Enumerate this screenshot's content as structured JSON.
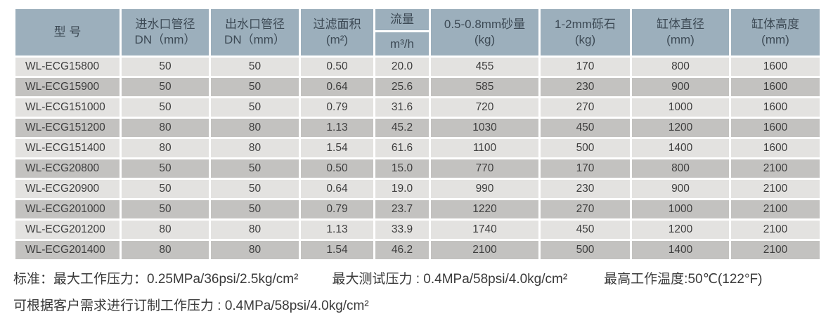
{
  "table": {
    "header": {
      "model": "型  号",
      "inlet_title": "进水口管径",
      "inlet_unit": "DN（mm）",
      "outlet_title": "出水口管径",
      "outlet_unit": "DN（mm）",
      "filter_area_title": "过滤面积",
      "filter_area_unit": "(m²)",
      "flow_title": "流量",
      "flow_unit": "m³/h",
      "sand_title": "0.5-0.8mm砂量",
      "sand_unit": "(kg)",
      "gravel_title": "1-2mm砾石",
      "gravel_unit": "(kg)",
      "diameter_title": "缸体直径",
      "diameter_unit": "(mm)",
      "height_title": "缸体高度",
      "height_unit": "(mm)"
    },
    "row_keys": [
      "model",
      "inlet_dn",
      "outlet_dn",
      "filter_area",
      "flow",
      "sand",
      "gravel",
      "diameter",
      "height"
    ],
    "rows": [
      {
        "model": "WL-ECG15800",
        "inlet_dn": "50",
        "outlet_dn": "50",
        "filter_area": "0.50",
        "flow": "20.0",
        "sand": "455",
        "gravel": "170",
        "diameter": "800",
        "height": "1600"
      },
      {
        "model": "WL-ECG15900",
        "inlet_dn": "50",
        "outlet_dn": "50",
        "filter_area": "0.64",
        "flow": "25.6",
        "sand": "585",
        "gravel": "230",
        "diameter": "900",
        "height": "1600"
      },
      {
        "model": "WL-ECG151000",
        "inlet_dn": "50",
        "outlet_dn": "50",
        "filter_area": "0.79",
        "flow": "31.6",
        "sand": "720",
        "gravel": "270",
        "diameter": "1000",
        "height": "1600"
      },
      {
        "model": "WL-ECG151200",
        "inlet_dn": "80",
        "outlet_dn": "80",
        "filter_area": "1.13",
        "flow": "45.2",
        "sand": "1030",
        "gravel": "450",
        "diameter": "1200",
        "height": "1600"
      },
      {
        "model": "WL-ECG151400",
        "inlet_dn": "80",
        "outlet_dn": "80",
        "filter_area": "1.54",
        "flow": "61.6",
        "sand": "1100",
        "gravel": "500",
        "diameter": "1400",
        "height": "1600"
      },
      {
        "model": "WL-ECG20800",
        "inlet_dn": "50",
        "outlet_dn": "50",
        "filter_area": "0.50",
        "flow": "15.0",
        "sand": "770",
        "gravel": "170",
        "diameter": "800",
        "height": "2100"
      },
      {
        "model": "WL-ECG20900",
        "inlet_dn": "50",
        "outlet_dn": "50",
        "filter_area": "0.64",
        "flow": "19.0",
        "sand": "990",
        "gravel": "230",
        "diameter": "900",
        "height": "2100"
      },
      {
        "model": "WL-ECG201000",
        "inlet_dn": "50",
        "outlet_dn": "50",
        "filter_area": "0.79",
        "flow": "23.7",
        "sand": "1220",
        "gravel": "270",
        "diameter": "1000",
        "height": "2100"
      },
      {
        "model": "WL-ECG201200",
        "inlet_dn": "80",
        "outlet_dn": "80",
        "filter_area": "1.13",
        "flow": "33.9",
        "sand": "1740",
        "gravel": "450",
        "diameter": "1200",
        "height": "2100"
      },
      {
        "model": "WL-ECG201400",
        "inlet_dn": "80",
        "outlet_dn": "80",
        "filter_area": "1.54",
        "flow": "46.2",
        "sand": "2100",
        "gravel": "500",
        "diameter": "1400",
        "height": "2100"
      }
    ]
  },
  "notes": {
    "line1_part1": "标准：最大工作压力：0.25MPa/36psi/2.5kg/cm²",
    "line1_part2": "最大测试压力 : 0.4MPa/58psi/4.0kg/cm²",
    "line1_part3": "最高工作温度:50℃(122°F)",
    "line2": "可根据客户需求进行订制工作压力 : 0.4MPa/58psi/4.0kg/cm²"
  },
  "colors": {
    "header_bg": "#9cafbc",
    "header_text": "#3d4a55",
    "row_light": "#e3e2e0",
    "row_dark": "#c3c2c0",
    "cell_text": "#3e3e3e",
    "notes_text": "#3a3a3a",
    "gap": "#ffffff"
  }
}
